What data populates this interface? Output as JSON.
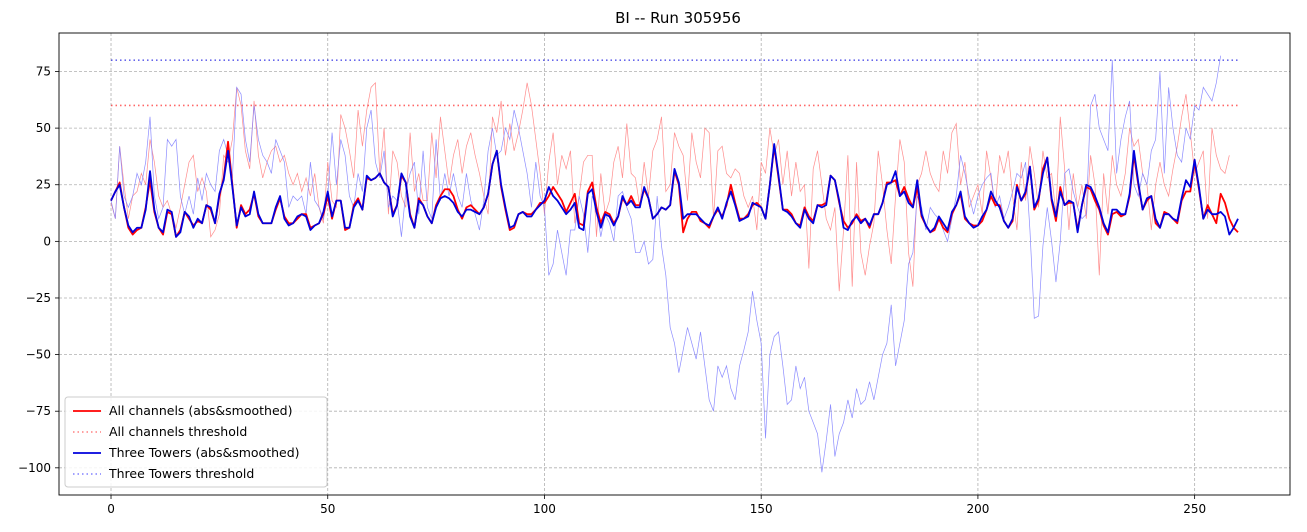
{
  "chart_data": {
    "type": "line",
    "title": "BI -- Run 305956",
    "xlabel": "",
    "ylabel": "",
    "xlim": [
      -12,
      272
    ],
    "ylim": [
      -112,
      92
    ],
    "xticks": [
      0,
      50,
      100,
      150,
      200,
      250
    ],
    "yticks": [
      -100,
      -75,
      -50,
      -25,
      0,
      25,
      50,
      75
    ],
    "grid": true,
    "legend_position": "lower-left",
    "colors": {
      "all_channels": "#ff0000",
      "three_towers": "#0000dd",
      "all_raw": "#ff8080",
      "three_raw": "#8080ff"
    },
    "series": [
      {
        "name": "All channels (abs&smoothed)",
        "role": "smoothed",
        "color": "#ff0000",
        "x_start": 0,
        "values": [
          18,
          22,
          26,
          15,
          6,
          3,
          5,
          6,
          15,
          27,
          13,
          6,
          3,
          13,
          12,
          2,
          5,
          13,
          10,
          7,
          9,
          8,
          16,
          14,
          8,
          20,
          28,
          44,
          25,
          6,
          16,
          12,
          14,
          21,
          11,
          8,
          8,
          8,
          14,
          19,
          11,
          8,
          8,
          10,
          12,
          12,
          6,
          7,
          8,
          12,
          20,
          10,
          18,
          18,
          5,
          6,
          16,
          19,
          14,
          28,
          27,
          28,
          30,
          26,
          24,
          12,
          16,
          29,
          26,
          12,
          6,
          19,
          16,
          11,
          8,
          16,
          20,
          23,
          23,
          20,
          14,
          10,
          15,
          16,
          14,
          12,
          15,
          21,
          34,
          40,
          24,
          14,
          5,
          6,
          12,
          13,
          12,
          12,
          14,
          17,
          17,
          20,
          24,
          21,
          18,
          13,
          17,
          21,
          8,
          7,
          22,
          26,
          15,
          8,
          13,
          12,
          8,
          11,
          19,
          16,
          20,
          16,
          16,
          23,
          19,
          10,
          12,
          15,
          14,
          16,
          31,
          25,
          4,
          10,
          13,
          13,
          9,
          8,
          6,
          11,
          14,
          11,
          16,
          25,
          17,
          10,
          10,
          12,
          16,
          17,
          15,
          10,
          25,
          42,
          28,
          14,
          14,
          12,
          8,
          7,
          15,
          11,
          9,
          16,
          16,
          17,
          29,
          27,
          17,
          9,
          6,
          8,
          12,
          9,
          10,
          6,
          12,
          12,
          17,
          26,
          26,
          27,
          20,
          24,
          19,
          15,
          24,
          11,
          7,
          4,
          5,
          10,
          6,
          4,
          12,
          16,
          21,
          10,
          8,
          7,
          7,
          9,
          14,
          20,
          16,
          16,
          9,
          6,
          9,
          25,
          18,
          21,
          33,
          14,
          18,
          32,
          37,
          18,
          9,
          24,
          16,
          17,
          17,
          5,
          16,
          24,
          23,
          18,
          14,
          7,
          3,
          12,
          13,
          11,
          12,
          20,
          38,
          25,
          14,
          18,
          20,
          8,
          6,
          13,
          12,
          10,
          8,
          18,
          22,
          22,
          35,
          23,
          10,
          16,
          12,
          8,
          21,
          17,
          10,
          6,
          4
        ]
      },
      {
        "name": "All channels threshold",
        "role": "threshold",
        "color": "#ff0000",
        "x_range": [
          0,
          260
        ],
        "value": 60
      },
      {
        "name": "Three Towers (abs&smoothed)",
        "role": "smoothed",
        "color": "#0000dd",
        "x_start": 0,
        "values": [
          18,
          22,
          25,
          15,
          7,
          4,
          6,
          6,
          14,
          31,
          14,
          6,
          4,
          14,
          13,
          2,
          4,
          13,
          11,
          6,
          10,
          8,
          16,
          15,
          8,
          21,
          27,
          40,
          24,
          7,
          15,
          11,
          12,
          22,
          12,
          8,
          8,
          8,
          15,
          20,
          10,
          7,
          8,
          11,
          12,
          11,
          5,
          7,
          8,
          13,
          22,
          11,
          18,
          18,
          6,
          6,
          15,
          18,
          14,
          29,
          27,
          28,
          30,
          26,
          24,
          11,
          16,
          30,
          26,
          11,
          6,
          18,
          16,
          11,
          8,
          15,
          19,
          20,
          19,
          17,
          13,
          11,
          14,
          14,
          13,
          12,
          15,
          21,
          34,
          40,
          25,
          15,
          6,
          7,
          12,
          13,
          11,
          11,
          14,
          16,
          18,
          24,
          20,
          18,
          15,
          12,
          14,
          17,
          6,
          5,
          21,
          23,
          13,
          6,
          12,
          11,
          7,
          11,
          20,
          16,
          18,
          15,
          15,
          24,
          19,
          10,
          12,
          15,
          14,
          16,
          32,
          26,
          10,
          12,
          12,
          12,
          10,
          8,
          7,
          11,
          15,
          10,
          17,
          22,
          16,
          9,
          10,
          11,
          17,
          16,
          15,
          10,
          25,
          43,
          29,
          14,
          13,
          11,
          8,
          6,
          14,
          10,
          8,
          16,
          15,
          16,
          29,
          27,
          18,
          6,
          5,
          9,
          11,
          8,
          10,
          7,
          12,
          12,
          17,
          25,
          26,
          31,
          20,
          22,
          17,
          15,
          27,
          12,
          7,
          4,
          6,
          11,
          8,
          5,
          13,
          16,
          22,
          11,
          8,
          6,
          7,
          11,
          14,
          22,
          18,
          15,
          9,
          6,
          10,
          24,
          18,
          22,
          33,
          15,
          19,
          30,
          37,
          19,
          11,
          22,
          16,
          18,
          17,
          4,
          16,
          25,
          24,
          20,
          15,
          8,
          4,
          14,
          14,
          12,
          12,
          21,
          40,
          26,
          14,
          19,
          20,
          10,
          6,
          12,
          12,
          10,
          9,
          19,
          27,
          24,
          36,
          24,
          10,
          14,
          12,
          12,
          13,
          11,
          3,
          6,
          10
        ]
      },
      {
        "name": "Three Towers threshold",
        "role": "threshold",
        "color": "#0000dd",
        "x_range": [
          0,
          260
        ],
        "value": 80
      },
      {
        "role": "raw",
        "color": "#ff8080",
        "x_start": 0,
        "values": [
          17,
          10,
          42,
          25,
          10,
          20,
          22,
          30,
          25,
          45,
          35,
          20,
          15,
          18,
          12,
          6,
          15,
          25,
          35,
          38,
          22,
          28,
          22,
          2,
          5,
          12,
          38,
          35,
          45,
          68,
          60,
          40,
          32,
          62,
          38,
          28,
          35,
          40,
          42,
          35,
          38,
          30,
          25,
          30,
          22,
          28,
          20,
          30,
          15,
          8,
          35,
          18,
          15,
          56,
          50,
          40,
          28,
          58,
          42,
          58,
          68,
          70,
          30,
          50,
          12,
          40,
          35,
          20,
          15,
          48,
          22,
          30,
          18,
          18,
          48,
          28,
          55,
          40,
          25,
          38,
          45,
          30,
          42,
          48,
          38,
          30,
          20,
          12,
          55,
          48,
          62,
          38,
          52,
          40,
          48,
          58,
          70,
          60,
          45,
          30,
          12,
          35,
          48,
          25,
          38,
          32,
          40,
          8,
          20,
          35,
          38,
          38,
          2,
          30,
          12,
          18,
          35,
          42,
          28,
          52,
          30,
          28,
          15,
          35,
          20,
          40,
          45,
          55,
          22,
          25,
          48,
          42,
          38,
          18,
          48,
          35,
          28,
          50,
          48,
          10,
          40,
          42,
          30,
          28,
          32,
          30,
          20,
          15,
          20,
          5,
          35,
          30,
          50,
          38,
          45,
          25,
          40,
          20,
          35,
          22,
          25,
          -12,
          32,
          40,
          25,
          10,
          5,
          15,
          -22,
          5,
          38,
          -20,
          35,
          -5,
          -15,
          -2,
          8,
          40,
          25,
          5,
          -10,
          20,
          45,
          35,
          -5,
          -20,
          25,
          30,
          40,
          30,
          25,
          22,
          40,
          30,
          48,
          52,
          25,
          35,
          15,
          20,
          25,
          12,
          40,
          28,
          15,
          38,
          30,
          40,
          20,
          5,
          35,
          18,
          42,
          30,
          15,
          40,
          28,
          30,
          12,
          55,
          32,
          5,
          30,
          15,
          25,
          10,
          38,
          25,
          -15,
          30,
          12,
          38,
          25,
          20,
          30,
          50,
          42,
          45,
          30,
          25,
          5,
          25,
          35,
          25,
          20,
          32,
          42,
          55,
          65,
          48,
          30,
          35,
          40,
          10,
          50,
          38,
          32,
          30,
          38
        ]
      },
      {
        "role": "raw",
        "color": "#8080ff",
        "x_start": 0,
        "values": [
          18,
          10,
          42,
          20,
          15,
          20,
          30,
          25,
          35,
          55,
          20,
          10,
          15,
          45,
          42,
          45,
          20,
          12,
          20,
          12,
          28,
          18,
          30,
          25,
          22,
          40,
          45,
          38,
          28,
          68,
          65,
          45,
          35,
          60,
          45,
          38,
          35,
          30,
          45,
          40,
          35,
          15,
          20,
          18,
          20,
          12,
          35,
          18,
          15,
          10,
          20,
          48,
          25,
          45,
          38,
          20,
          15,
          30,
          22,
          50,
          58,
          35,
          28,
          40,
          15,
          20,
          18,
          2,
          22,
          30,
          35,
          12,
          40,
          15,
          10,
          45,
          18,
          30,
          20,
          30,
          20,
          15,
          30,
          18,
          12,
          5,
          18,
          40,
          50,
          38,
          40,
          50,
          45,
          58,
          50,
          40,
          30,
          15,
          35,
          20,
          15,
          -15,
          -10,
          5,
          -5,
          -15,
          5,
          5,
          20,
          12,
          -5,
          20,
          15,
          2,
          12,
          8,
          0,
          20,
          22,
          15,
          10,
          -5,
          -5,
          0,
          -10,
          -8,
          20,
          -2,
          -15,
          -38,
          -45,
          -58,
          -48,
          -38,
          -45,
          -52,
          -40,
          -55,
          -70,
          -75,
          -55,
          -60,
          -55,
          -65,
          -70,
          -55,
          -48,
          -40,
          -22,
          -35,
          -45,
          -87,
          -50,
          -42,
          -40,
          -55,
          -72,
          -70,
          -55,
          -65,
          -60,
          -75,
          -80,
          -85,
          -102,
          -88,
          -72,
          -95,
          -85,
          -80,
          -70,
          -78,
          -65,
          -72,
          -70,
          -62,
          -70,
          -60,
          -50,
          -45,
          -28,
          -55,
          -45,
          -35,
          -10,
          -5,
          20,
          15,
          5,
          15,
          12,
          10,
          5,
          0,
          10,
          20,
          38,
          30,
          20,
          12,
          20,
          25,
          28,
          30,
          15,
          20,
          10,
          15,
          22,
          30,
          28,
          35,
          5,
          -34,
          -33,
          -2,
          15,
          0,
          -18,
          0,
          30,
          32,
          22,
          15,
          10,
          12,
          60,
          65,
          50,
          45,
          40,
          80,
          30,
          45,
          55,
          62,
          25,
          20,
          30,
          25,
          40,
          45,
          75,
          30,
          68,
          50,
          38,
          35,
          50,
          45,
          60,
          58,
          68,
          65,
          62,
          70,
          82
        ]
      }
    ]
  },
  "legend": {
    "items": [
      {
        "label": "All channels (abs&smoothed)",
        "color": "#ff0000",
        "style": "solid"
      },
      {
        "label": "All channels threshold",
        "color": "#ff8080",
        "style": "dotted"
      },
      {
        "label": "Three Towers (abs&smoothed)",
        "color": "#0000dd",
        "style": "solid"
      },
      {
        "label": "Three Towers threshold",
        "color": "#8080ff",
        "style": "dotted"
      }
    ]
  }
}
